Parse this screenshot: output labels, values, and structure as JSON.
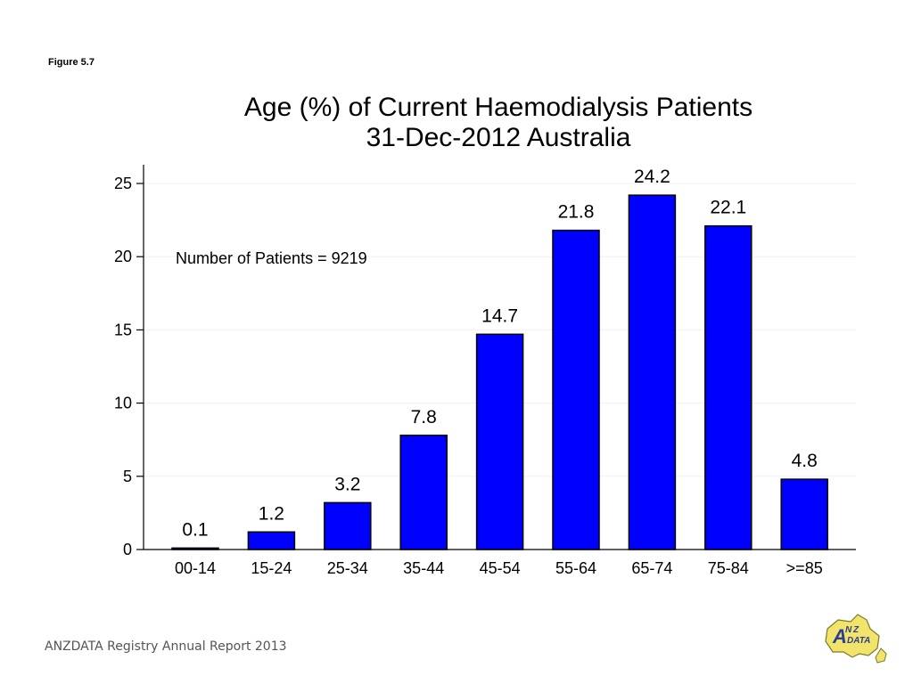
{
  "figure_label": "Figure 5.7",
  "footer": "ANZDATA Registry Annual Report 2013",
  "logo": {
    "big_letter": "A",
    "small_n": "N",
    "small_z": "Z",
    "word": "DATA"
  },
  "colors": {
    "bar": "#0000ff",
    "axis": "#000000",
    "grid": "#f0f0f0"
  },
  "chart_data": {
    "type": "bar",
    "title": [
      "Age (%) of Current Haemodialysis Patients",
      "31-Dec-2012 Australia"
    ],
    "xlabel": "",
    "ylabel": "",
    "categories": [
      "00-14",
      "15-24",
      "25-34",
      "35-44",
      "45-54",
      "55-64",
      "65-74",
      "75-84",
      ">=85"
    ],
    "values": [
      0.1,
      1.2,
      3.2,
      7.8,
      14.7,
      21.8,
      24.2,
      22.1,
      4.8
    ],
    "data_labels": [
      "0.1",
      "1.2",
      "3.2",
      "7.8",
      "14.7",
      "21.8",
      "24.2",
      "22.1",
      "4.8"
    ],
    "yticks": [
      0,
      5,
      10,
      15,
      20,
      25
    ],
    "ylim": [
      0,
      25
    ],
    "grid": true,
    "annotation": "Number of Patients = 9219"
  }
}
